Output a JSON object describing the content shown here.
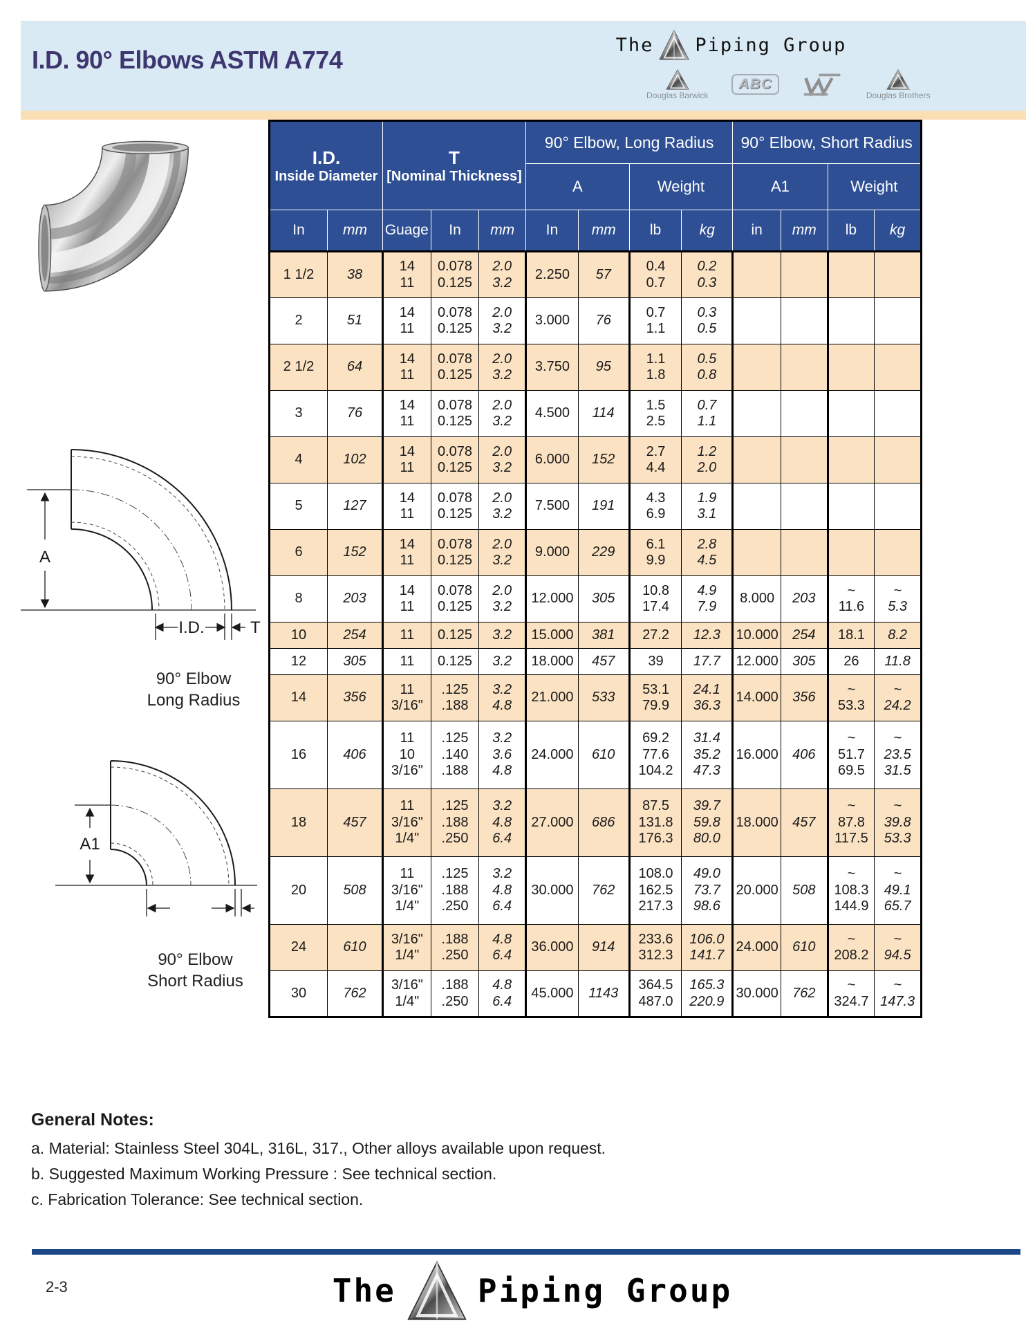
{
  "page": {
    "title": "I.D. 90° Elbows ASTM A774",
    "page_number": "2-3"
  },
  "brand": {
    "prefix": "The",
    "suffix": "Piping Group",
    "sub_douglas_barwick": "Douglas Barwick",
    "sub_abc": "ABC",
    "sub_douglas_brothers": "Douglas Brothers"
  },
  "table": {
    "group_id": {
      "title": "I.D.",
      "subtitle": "Inside Diameter"
    },
    "group_t": {
      "title": "T",
      "subtitle": "[Nominal Thickness]"
    },
    "group_long": {
      "title": "90° Elbow, Long Radius",
      "col_a": "A",
      "col_weight": "Weight"
    },
    "group_short": {
      "title": "90° Elbow, Short Radius",
      "col_a": "A1",
      "col_weight": "Weight"
    },
    "units": [
      "In",
      "mm",
      "Guage",
      "In",
      "mm",
      "In",
      "mm",
      "lb",
      "kg",
      "in",
      "mm",
      "lb",
      "kg"
    ],
    "rows": [
      [
        "1 1/2",
        "38",
        "14\n11",
        "0.078\n0.125",
        "2.0\n3.2",
        "2.250",
        "57",
        "0.4\n0.7",
        "0.2\n0.3",
        "",
        "",
        "",
        ""
      ],
      [
        "2",
        "51",
        "14\n11",
        "0.078\n0.125",
        "2.0\n3.2",
        "3.000",
        "76",
        "0.7\n1.1",
        "0.3\n0.5",
        "",
        "",
        "",
        ""
      ],
      [
        "2 1/2",
        "64",
        "14\n11",
        "0.078\n0.125",
        "2.0\n3.2",
        "3.750",
        "95",
        "1.1\n1.8",
        "0.5\n0.8",
        "",
        "",
        "",
        ""
      ],
      [
        "3",
        "76",
        "14\n11",
        "0.078\n0.125",
        "2.0\n3.2",
        "4.500",
        "114",
        "1.5\n2.5",
        "0.7\n1.1",
        "",
        "",
        "",
        ""
      ],
      [
        "4",
        "102",
        "14\n11",
        "0.078\n0.125",
        "2.0\n3.2",
        "6.000",
        "152",
        "2.7\n4.4",
        "1.2\n2.0",
        "",
        "",
        "",
        ""
      ],
      [
        "5",
        "127",
        "14\n11",
        "0.078\n0.125",
        "2.0\n3.2",
        "7.500",
        "191",
        "4.3\n6.9",
        "1.9\n3.1",
        "",
        "",
        "",
        ""
      ],
      [
        "6",
        "152",
        "14\n11",
        "0.078\n0.125",
        "2.0\n3.2",
        "9.000",
        "229",
        "6.1\n9.9",
        "2.8\n4.5",
        "",
        "",
        "",
        ""
      ],
      [
        "8",
        "203",
        "14\n11",
        "0.078\n0.125",
        "2.0\n3.2",
        "12.000",
        "305",
        "10.8\n17.4",
        "4.9\n7.9",
        "8.000",
        "203",
        "~\n11.6",
        "~\n5.3"
      ],
      [
        "10",
        "254",
        "11",
        "0.125",
        "3.2",
        "15.000",
        "381",
        "27.2",
        "12.3",
        "10.000",
        "254",
        "18.1",
        "8.2"
      ],
      [
        "12",
        "305",
        "11",
        "0.125",
        "3.2",
        "18.000",
        "457",
        "39",
        "17.7",
        "12.000",
        "305",
        "26",
        "11.8"
      ],
      [
        "14",
        "356",
        "11\n3/16\"",
        ".125\n.188",
        "3.2\n4.8",
        "21.000",
        "533",
        "53.1\n79.9",
        "24.1\n36.3",
        "14.000",
        "356",
        "~\n53.3",
        "~\n24.2"
      ],
      [
        "16",
        "406",
        "11\n10\n3/16\"",
        ".125\n.140\n.188",
        "3.2\n3.6\n4.8",
        "24.000",
        "610",
        "69.2\n77.6\n104.2",
        "31.4\n35.2\n47.3",
        "16.000",
        "406",
        "~\n51.7\n69.5",
        "~\n23.5\n31.5"
      ],
      [
        "18",
        "457",
        "11\n3/16\"\n1/4\"",
        ".125\n.188\n.250",
        "3.2\n4.8\n6.4",
        "27.000",
        "686",
        "87.5\n131.8\n176.3",
        "39.7\n59.8\n80.0",
        "18.000",
        "457",
        "~\n87.8\n117.5",
        "~\n39.8\n53.3"
      ],
      [
        "20",
        "508",
        "11\n3/16\"\n1/4\"",
        ".125\n.188\n.250",
        "3.2\n4.8\n6.4",
        "30.000",
        "762",
        "108.0\n162.5\n217.3",
        "49.0\n73.7\n98.6",
        "20.000",
        "508",
        "~\n108.3\n144.9",
        "~\n49.1\n65.7"
      ],
      [
        "24",
        "610",
        "3/16\"\n1/4\"",
        ".188\n.250",
        "4.8\n6.4",
        "36.000",
        "914",
        "233.6\n312.3",
        "106.0\n141.7",
        "24.000",
        "610",
        "~\n208.2",
        "~\n94.5"
      ],
      [
        "30",
        "762",
        "3/16\"\n1/4\"",
        ".188\n.250",
        "4.8\n6.4",
        "45.000",
        "1143",
        "364.5\n487.0",
        "165.3\n220.9",
        "30.000",
        "762",
        "~\n324.7",
        "~\n147.3"
      ]
    ]
  },
  "diagrams": {
    "long_radius": {
      "dim_a": "A",
      "dim_id": "I.D.",
      "dim_t": "T",
      "caption1": "90° Elbow",
      "caption2": "Long Radius"
    },
    "short_radius": {
      "dim_a1": "A1",
      "caption1": "90° Elbow",
      "caption2": "Short Radius"
    }
  },
  "notes": {
    "heading": "General Notes:",
    "items": [
      "a. Material: Stainless Steel 304L, 316L, 317., Other alloys available upon request.",
      "b. Suggested Maximum Working Pressure : See technical section.",
      "c. Fabrication Tolerance: See technical section."
    ]
  },
  "colors": {
    "header_blue": "#2e4f94",
    "row_peach": "#fbe2c2",
    "band_blue": "#d9eaf4",
    "title_purple": "#3e366f",
    "footer_bar": "#1c4786"
  }
}
